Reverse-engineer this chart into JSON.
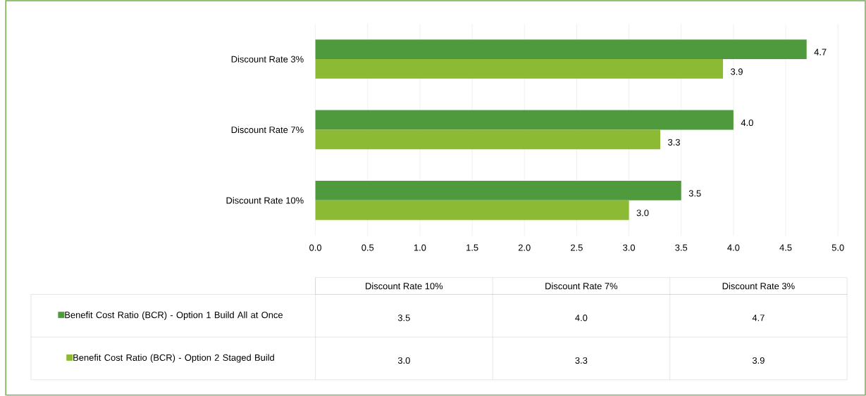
{
  "chart_data": {
    "type": "bar",
    "orientation": "horizontal",
    "categories": [
      "Discount Rate 3%",
      "Discount Rate 7%",
      "Discount Rate 10%"
    ],
    "series": [
      {
        "name": "Benefit Cost Ratio (BCR) - Option 1 Build All at Once",
        "color": "#4e9a3c",
        "values": [
          4.7,
          4.0,
          3.5
        ],
        "value_labels": [
          "4.7",
          "4.0",
          "3.5"
        ]
      },
      {
        "name": "Benefit Cost Ratio (BCR) - Option 2 Staged Build",
        "color": "#8cba34",
        "values": [
          3.9,
          3.3,
          3.0
        ],
        "value_labels": [
          "3.9",
          "3.3",
          "3.0"
        ]
      }
    ],
    "xlim": [
      0,
      5
    ],
    "xticks": [
      {
        "value": 0,
        "label": "0.0"
      },
      {
        "value": 0.5,
        "label": "0.5"
      },
      {
        "value": 1,
        "label": "1.0"
      },
      {
        "value": 1.5,
        "label": "1.5"
      },
      {
        "value": 2,
        "label": "2.0"
      },
      {
        "value": 2.5,
        "label": "2.5"
      },
      {
        "value": 3,
        "label": "3.0"
      },
      {
        "value": 3.5,
        "label": "3.5"
      },
      {
        "value": 4,
        "label": "4.0"
      },
      {
        "value": 4.5,
        "label": "4.5"
      },
      {
        "value": 5,
        "label": "5.0"
      }
    ],
    "grid": "x",
    "legend": "bottom"
  }
}
